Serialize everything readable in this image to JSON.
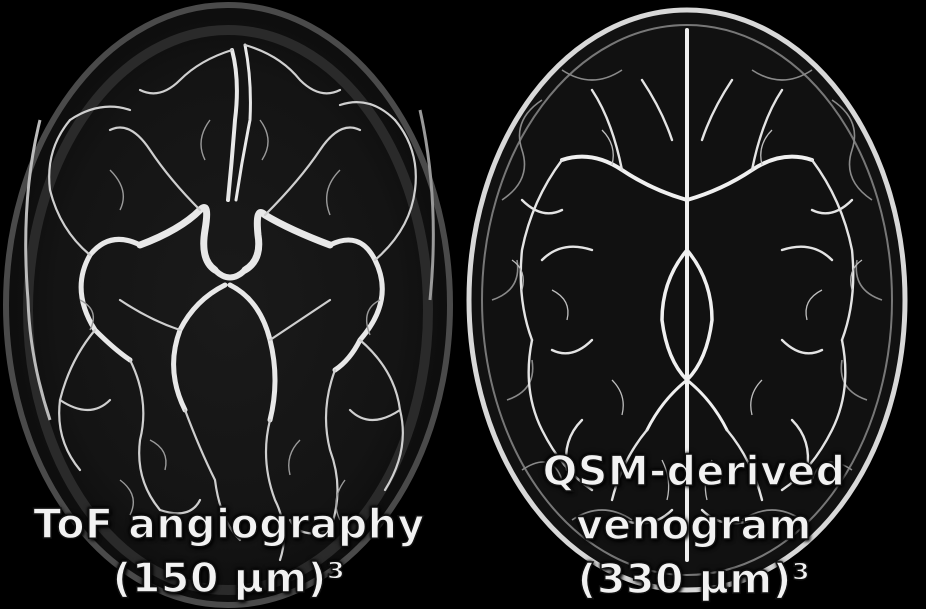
{
  "panels": {
    "left": {
      "caption_line1": "ToF angiography",
      "caption_line2": "(150 µm)³"
    },
    "right": {
      "caption_line1": "QSM-derived",
      "caption_line2": "venogram",
      "caption_line3": "(330 µm)³"
    }
  },
  "colors": {
    "background": "#000000",
    "vessel": "#e8e8e8",
    "caption_text": "#f2f2f2"
  }
}
